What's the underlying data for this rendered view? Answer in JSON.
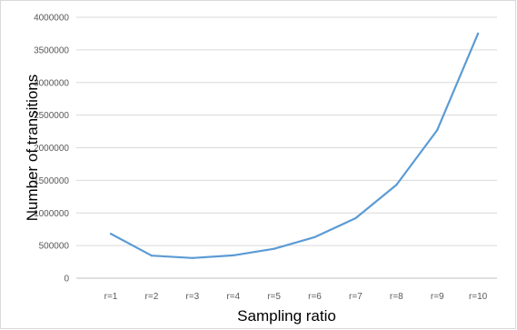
{
  "chart_data": {
    "type": "line",
    "title": "",
    "xlabel": "Sampling ratio",
    "ylabel": "Number of transitions",
    "categories": [
      "r=1",
      "r=2",
      "r=3",
      "r=4",
      "r=5",
      "r=6",
      "r=7",
      "r=8",
      "r=9",
      "r=10"
    ],
    "series": [
      {
        "values": [
          680000,
          345000,
          310000,
          350000,
          450000,
          630000,
          920000,
          1430000,
          2270000,
          3750000
        ],
        "color": "#5b9bd5"
      }
    ],
    "ylim": [
      0,
      4000000
    ],
    "yticks": [
      0,
      500000,
      1000000,
      1500000,
      2000000,
      2500000,
      3000000,
      3500000,
      4000000
    ],
    "grid": "horizontal",
    "legend": "none",
    "colors": {
      "gridline": "#d9d9d9",
      "axis_line": "#bfbfbf",
      "tick_text": "#595959"
    }
  }
}
